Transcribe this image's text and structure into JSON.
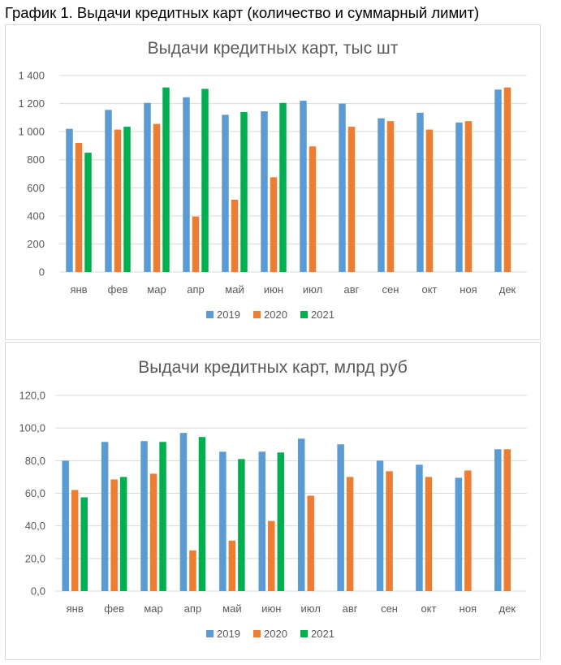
{
  "page_title": "График 1. Выдачи кредитных карт (количество и суммарный лимит)",
  "colors": {
    "2019": "#5b9bd5",
    "2020": "#ed7d31",
    "2021": "#00b050",
    "gridline": "#d9d9d9",
    "text": "#595959"
  },
  "chart_data": [
    {
      "type": "bar",
      "title": "Выдачи кредитных карт, тыс шт",
      "xlabel": "",
      "ylabel": "",
      "categories": [
        "янв",
        "фев",
        "мар",
        "апр",
        "май",
        "июн",
        "июл",
        "авг",
        "сен",
        "окт",
        "ноя",
        "дек"
      ],
      "series": [
        {
          "name": "2019",
          "values": [
            1020,
            1155,
            1205,
            1245,
            1120,
            1145,
            1220,
            1200,
            1095,
            1135,
            1065,
            1300
          ]
        },
        {
          "name": "2020",
          "values": [
            920,
            1015,
            1055,
            395,
            515,
            675,
            895,
            1035,
            1075,
            1015,
            1075,
            1315
          ]
        },
        {
          "name": "2021",
          "values": [
            850,
            1035,
            1315,
            1305,
            1140,
            1205,
            null,
            null,
            null,
            null,
            null,
            null
          ]
        }
      ],
      "ylim": [
        0,
        1400
      ],
      "yticks": [
        0,
        200,
        400,
        600,
        800,
        1000,
        1200,
        1400
      ],
      "ytick_labels": [
        "0",
        "200",
        "400",
        "600",
        "800",
        "1 000",
        "1 200",
        "1 400"
      ],
      "grid": true,
      "legend_position": "bottom"
    },
    {
      "type": "bar",
      "title": "Выдачи кредитных карт, млрд руб",
      "xlabel": "",
      "ylabel": "",
      "categories": [
        "янв",
        "фев",
        "мар",
        "апр",
        "май",
        "июн",
        "июл",
        "авг",
        "сен",
        "окт",
        "ноя",
        "дек"
      ],
      "series": [
        {
          "name": "2019",
          "values": [
            80.0,
            91.5,
            92.0,
            97.0,
            85.5,
            85.5,
            93.5,
            90.0,
            80.0,
            77.5,
            69.5,
            87.0
          ]
        },
        {
          "name": "2020",
          "values": [
            62.0,
            68.5,
            72.0,
            25.0,
            31.0,
            43.0,
            58.5,
            70.0,
            73.5,
            70.0,
            74.0,
            87.0
          ]
        },
        {
          "name": "2021",
          "values": [
            57.5,
            70.0,
            91.5,
            94.5,
            81.0,
            85.0,
            null,
            null,
            null,
            null,
            null,
            null
          ]
        }
      ],
      "ylim": [
        0,
        120
      ],
      "yticks": [
        0,
        20,
        40,
        60,
        80,
        100,
        120
      ],
      "ytick_labels": [
        "0,0",
        "20,0",
        "40,0",
        "60,0",
        "80,0",
        "100,0",
        "120,0"
      ],
      "grid": true,
      "legend_position": "bottom"
    }
  ]
}
